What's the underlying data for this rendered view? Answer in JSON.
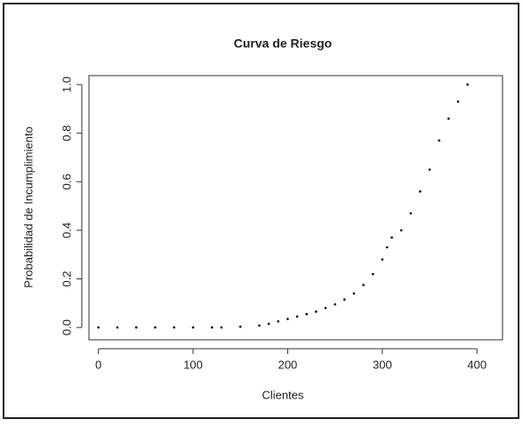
{
  "chart_data": {
    "type": "scatter",
    "title": "Curva de Riesgo",
    "x_label": "Clientes",
    "y_label": "Probabilidad de Incumplimiento",
    "x": [
      0,
      20,
      40,
      60,
      80,
      100,
      120,
      130,
      150,
      170,
      180,
      190,
      200,
      210,
      220,
      230,
      240,
      250,
      260,
      270,
      280,
      290,
      300,
      305,
      310,
      320,
      330,
      340,
      350,
      360,
      370,
      380,
      390
    ],
    "values": [
      0,
      0,
      0,
      0,
      0,
      0,
      0,
      0,
      0.003,
      0.008,
      0.015,
      0.025,
      0.035,
      0.045,
      0.055,
      0.065,
      0.08,
      0.095,
      0.115,
      0.14,
      0.175,
      0.22,
      0.28,
      0.33,
      0.37,
      0.4,
      0.47,
      0.56,
      0.65,
      0.77,
      0.86,
      0.93,
      1.0
    ],
    "color": "#000000",
    "xlim": [
      -10,
      427
    ],
    "xticks": [
      0,
      100,
      200,
      300,
      400
    ],
    "ylim": [
      -0.051,
      1.037
    ],
    "yticks": [
      {
        "value": 0,
        "label": "0.0"
      },
      {
        "value": 0.2,
        "label": "0.2"
      },
      {
        "value": 0.4,
        "label": "0.4"
      },
      {
        "value": 0.6,
        "label": "0.6"
      },
      {
        "value": 0.8,
        "label": "0.8"
      },
      {
        "value": 1,
        "label": "1.0"
      }
    ]
  }
}
